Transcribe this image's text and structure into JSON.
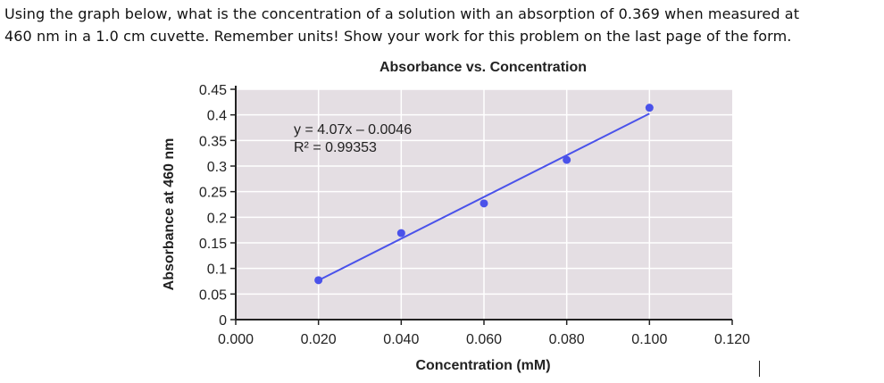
{
  "question": {
    "line1": "Using the graph below, what is the concentration of a solution with an absorption of 0.369 when measured at",
    "line2": "460 nm in a 1.0 cm cuvette. Remember units! Show your work for this problem on the last page of the form."
  },
  "chart_data": {
    "type": "scatter",
    "title": "Absorbance vs. Concentration",
    "xlabel": "Concentration (mM)",
    "ylabel": "Absorbance at 460 nm",
    "xlim": [
      0,
      0.12
    ],
    "ylim": [
      0,
      0.45
    ],
    "x_ticks": [
      "0.000",
      "0.020",
      "0.040",
      "0.060",
      "0.080",
      "0.100",
      "0.120"
    ],
    "y_ticks": [
      "0",
      "0.05",
      "0.1",
      "0.15",
      "0.2",
      "0.25",
      "0.3",
      "0.35",
      "0.4",
      "0.45"
    ],
    "grid": true,
    "x": [
      0.02,
      0.04,
      0.06,
      0.08,
      0.1
    ],
    "y": [
      0.077,
      0.169,
      0.227,
      0.312,
      0.414
    ],
    "trendline": {
      "slope": 4.07,
      "intercept": -0.0046,
      "x_range": [
        0.02,
        0.1
      ]
    },
    "annotations": [
      "y = 4.07x – 0.0046",
      "R² = 0.99353"
    ],
    "colors": {
      "points": "#4a52ea",
      "line": "#4a52ea",
      "plot_background": "#e4dee3",
      "grid": "#ffffff"
    }
  }
}
